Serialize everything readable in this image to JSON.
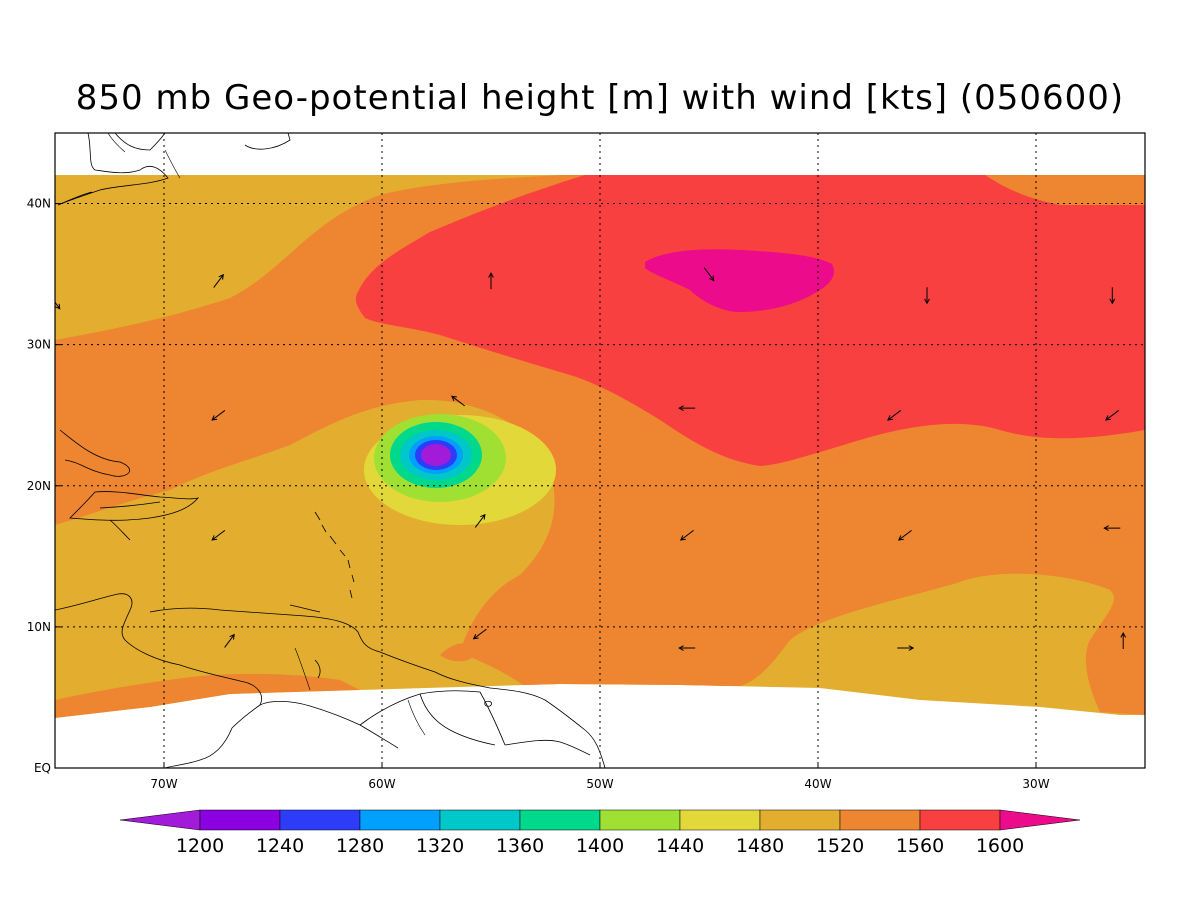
{
  "title": "850 mb Geo-potential height [m] with wind [kts] (050600)",
  "colors": {
    "c1480": "#e3d83a",
    "c1520": "#e3ae2f",
    "c1560": "#ee8530",
    "c1600": "#f84040",
    "c_above": "#ec0b8a",
    "land_outline": "#000000"
  },
  "map": {
    "lon_range": [
      -75,
      -25
    ],
    "lat_range": [
      0,
      45
    ],
    "lon_ticks": [
      {
        "value": -70,
        "label": "70W"
      },
      {
        "value": -60,
        "label": "60W"
      },
      {
        "value": -50,
        "label": "50W"
      },
      {
        "value": -40,
        "label": "40W"
      },
      {
        "value": -30,
        "label": "30W"
      }
    ],
    "lat_ticks": [
      {
        "value": 0,
        "label": "EQ"
      },
      {
        "value": 10,
        "label": "10N"
      },
      {
        "value": 20,
        "label": "20N"
      },
      {
        "value": 30,
        "label": "30N"
      },
      {
        "value": 40,
        "label": "40N"
      }
    ],
    "grid": "dotted"
  },
  "colorbar": {
    "levels": [
      "1200",
      "1240",
      "1280",
      "1320",
      "1360",
      "1400",
      "1440",
      "1480",
      "1520",
      "1560",
      "1600"
    ],
    "colors": [
      "#a11bd9",
      "#8a00e0",
      "#2d3cf8",
      "#00a0ff",
      "#00c8c8",
      "#00d88c",
      "#a0e032",
      "#e3d83a",
      "#e3ae2f",
      "#ee8530",
      "#f84040",
      "#ec0b8a"
    ]
  },
  "wind_vectors": [
    {
      "lon": -67.5,
      "lat": 34.5,
      "dir": "NE"
    },
    {
      "lon": -55,
      "lat": 34.5,
      "dir": "N"
    },
    {
      "lon": -45,
      "lat": 35,
      "dir": "SE"
    },
    {
      "lon": -35,
      "lat": 33.5,
      "dir": "S"
    },
    {
      "lon": -26.5,
      "lat": 33.5,
      "dir": "S"
    },
    {
      "lon": -75,
      "lat": 33,
      "dir": "SE"
    },
    {
      "lon": -67.5,
      "lat": 25,
      "dir": "SW"
    },
    {
      "lon": -56.5,
      "lat": 26,
      "dir": "NW"
    },
    {
      "lon": -46,
      "lat": 25.5,
      "dir": "W"
    },
    {
      "lon": -36.5,
      "lat": 25,
      "dir": "SW"
    },
    {
      "lon": -26.5,
      "lat": 25,
      "dir": "SW"
    },
    {
      "lon": -67.5,
      "lat": 16.5,
      "dir": "SW"
    },
    {
      "lon": -55.5,
      "lat": 17.5,
      "dir": "NE"
    },
    {
      "lon": -46,
      "lat": 16.5,
      "dir": "SW"
    },
    {
      "lon": -36,
      "lat": 16.5,
      "dir": "SW"
    },
    {
      "lon": -26.5,
      "lat": 17,
      "dir": "W"
    },
    {
      "lon": -67,
      "lat": 9,
      "dir": "NE"
    },
    {
      "lon": -55.5,
      "lat": 9.5,
      "dir": "SW"
    },
    {
      "lon": -46,
      "lat": 8.5,
      "dir": "W"
    },
    {
      "lon": -36,
      "lat": 8.5,
      "dir": "E"
    },
    {
      "lon": -26,
      "lat": 9,
      "dir": "N"
    }
  ]
}
